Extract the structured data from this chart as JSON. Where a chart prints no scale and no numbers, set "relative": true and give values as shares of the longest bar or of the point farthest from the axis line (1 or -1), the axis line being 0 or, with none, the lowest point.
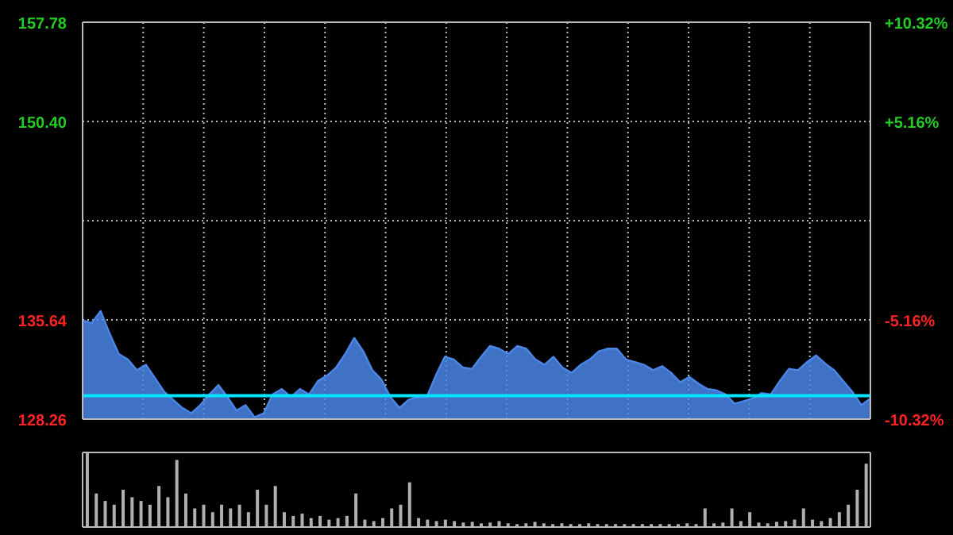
{
  "chart_data": [
    {
      "type": "area",
      "categories": [
        null,
        null,
        null,
        null,
        null,
        null,
        null,
        null,
        null,
        null,
        null,
        null,
        null,
        null,
        null,
        null,
        null,
        null,
        null,
        null,
        null,
        null,
        null,
        null,
        null,
        null,
        null,
        null,
        null,
        null,
        null,
        null,
        null,
        null,
        null,
        null,
        null,
        null,
        null,
        null,
        null,
        null,
        null,
        null,
        null,
        null,
        null,
        null,
        null,
        null,
        null,
        null,
        null,
        null,
        null,
        null,
        null,
        null,
        null,
        null,
        null,
        null,
        null,
        null,
        null,
        null,
        null,
        null,
        null,
        null,
        null,
        null,
        null,
        null,
        null,
        null,
        null,
        null,
        null,
        null,
        null,
        null,
        null,
        null,
        null,
        null,
        null,
        null
      ],
      "series": [
        {
          "color": "#4a86e8",
          "values": [
            135.6,
            135.4,
            136.3,
            134.6,
            133.1,
            132.7,
            131.9,
            132.3,
            131.3,
            130.3,
            129.7,
            129.1,
            128.7,
            129.3,
            130.1,
            130.8,
            129.9,
            128.9,
            129.3,
            128.4,
            128.7,
            130.1,
            130.5,
            129.9,
            130.5,
            130.1,
            131.1,
            131.5,
            132.1,
            133.1,
            134.3,
            133.3,
            131.9,
            131.2,
            129.9,
            129.1,
            129.7,
            129.9,
            129.9,
            131.5,
            132.9,
            132.7,
            132.1,
            132.0,
            132.9,
            133.7,
            133.5,
            133.1,
            133.7,
            133.5,
            132.7,
            132.3,
            132.9,
            132.1,
            131.7,
            132.3,
            132.7,
            133.3,
            133.5,
            133.5,
            132.7,
            132.5,
            132.3,
            131.9,
            132.2,
            131.7,
            131.0,
            131.4,
            130.9,
            130.5,
            130.4,
            130.1,
            129.4,
            129.6,
            129.8,
            130.2,
            130.1,
            131.1,
            132.0,
            131.9,
            132.5,
            133.0,
            132.4,
            131.9,
            131.1,
            130.3,
            129.3,
            129.8
          ]
        }
      ],
      "ylim": [
        128.26,
        157.78
      ],
      "yticks": [
        128.26,
        135.64,
        {
          "value": 143.02,
          "label": null
        },
        {
          "value": 150.4,
          "label": "150.40"
        },
        157.78
      ],
      "y2lim": [
        -10.32,
        10.32
      ],
      "y2ticks": [
        {
          "value": -10.32,
          "label": "-10.32%"
        },
        {
          "value": -5.16,
          "label": "-5.16%"
        },
        {
          "value": 0,
          "label": null
        },
        {
          "value": 5.16,
          "label": "+5.16%"
        },
        {
          "value": 10.32,
          "label": "+10.32%"
        }
      ],
      "ref_lines": [
        {
          "axis": "y",
          "value": 130.0,
          "color": "#00e5ff"
        }
      ],
      "grid": true,
      "tick_labels": "y"
    },
    {
      "type": "bar",
      "relative": true,
      "color": "#b0b0b0",
      "tick_labels": false,
      "categories": [
        null,
        null,
        null,
        null,
        null,
        null,
        null,
        null,
        null,
        null,
        null,
        null,
        null,
        null,
        null,
        null,
        null,
        null,
        null,
        null,
        null,
        null,
        null,
        null,
        null,
        null,
        null,
        null,
        null,
        null,
        null,
        null,
        null,
        null,
        null,
        null,
        null,
        null,
        null,
        null,
        null,
        null,
        null,
        null,
        null,
        null,
        null,
        null,
        null,
        null,
        null,
        null,
        null,
        null,
        null,
        null,
        null,
        null,
        null,
        null,
        null,
        null,
        null,
        null,
        null,
        null,
        null,
        null,
        null,
        null,
        null,
        null,
        null,
        null,
        null,
        null,
        null,
        null,
        null,
        null,
        null,
        null,
        null,
        null,
        null,
        null,
        null,
        null
      ],
      "values": [
        1.0,
        0.45,
        0.35,
        0.3,
        0.5,
        0.4,
        0.35,
        0.3,
        0.55,
        0.4,
        0.9,
        0.45,
        0.25,
        0.3,
        0.2,
        0.3,
        0.25,
        0.3,
        0.2,
        0.5,
        0.3,
        0.55,
        0.2,
        0.15,
        0.18,
        0.12,
        0.15,
        0.1,
        0.12,
        0.15,
        0.45,
        0.1,
        0.08,
        0.12,
        0.25,
        0.3,
        0.6,
        0.12,
        0.1,
        0.08,
        0.1,
        0.08,
        0.06,
        0.07,
        0.05,
        0.06,
        0.08,
        0.05,
        0.04,
        0.05,
        0.07,
        0.05,
        0.04,
        0.05,
        0.04,
        0.04,
        0.05,
        0.04,
        0.04,
        0.04,
        0.04,
        0.04,
        0.04,
        0.04,
        0.04,
        0.04,
        0.04,
        0.05,
        0.04,
        0.25,
        0.05,
        0.06,
        0.25,
        0.08,
        0.2,
        0.06,
        0.05,
        0.07,
        0.08,
        0.1,
        0.25,
        0.1,
        0.08,
        0.12,
        0.2,
        0.3,
        0.5,
        0.85
      ]
    }
  ]
}
